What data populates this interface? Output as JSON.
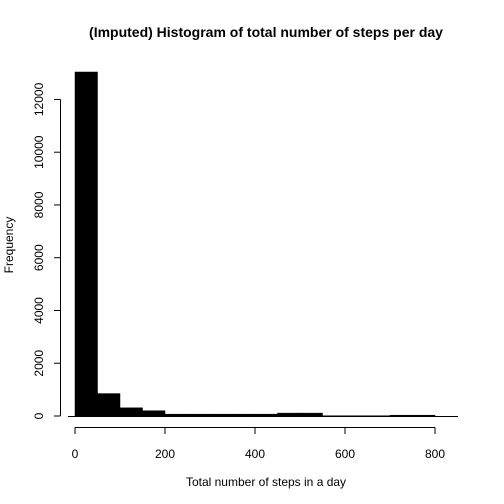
{
  "chart_data": {
    "type": "bar",
    "title": "(Imputed) Histogram of total number of steps per day",
    "xlabel": "Total number of steps in a day",
    "ylabel": "Frequency",
    "bins": [
      {
        "start": 0,
        "end": 50,
        "count": 13040
      },
      {
        "start": 50,
        "end": 100,
        "count": 850
      },
      {
        "start": 100,
        "end": 150,
        "count": 310
      },
      {
        "start": 150,
        "end": 200,
        "count": 200
      },
      {
        "start": 200,
        "end": 250,
        "count": 70
      },
      {
        "start": 250,
        "end": 300,
        "count": 70
      },
      {
        "start": 300,
        "end": 350,
        "count": 70
      },
      {
        "start": 350,
        "end": 400,
        "count": 70
      },
      {
        "start": 400,
        "end": 450,
        "count": 70
      },
      {
        "start": 450,
        "end": 500,
        "count": 110
      },
      {
        "start": 500,
        "end": 550,
        "count": 110
      },
      {
        "start": 550,
        "end": 600,
        "count": 10
      },
      {
        "start": 600,
        "end": 650,
        "count": 10
      },
      {
        "start": 650,
        "end": 700,
        "count": 10
      },
      {
        "start": 700,
        "end": 750,
        "count": 30
      },
      {
        "start": 750,
        "end": 800,
        "count": 30
      }
    ],
    "xlim": [
      0,
      850
    ],
    "ylim": [
      0,
      13040
    ],
    "x_ticks": [
      "0",
      "200",
      "400",
      "600",
      "800"
    ],
    "y_ticks": [
      "0",
      "2000",
      "4000",
      "6000",
      "8000",
      "10000",
      "12000"
    ],
    "bar_color": "#000000",
    "grid": false,
    "legend": "none"
  }
}
